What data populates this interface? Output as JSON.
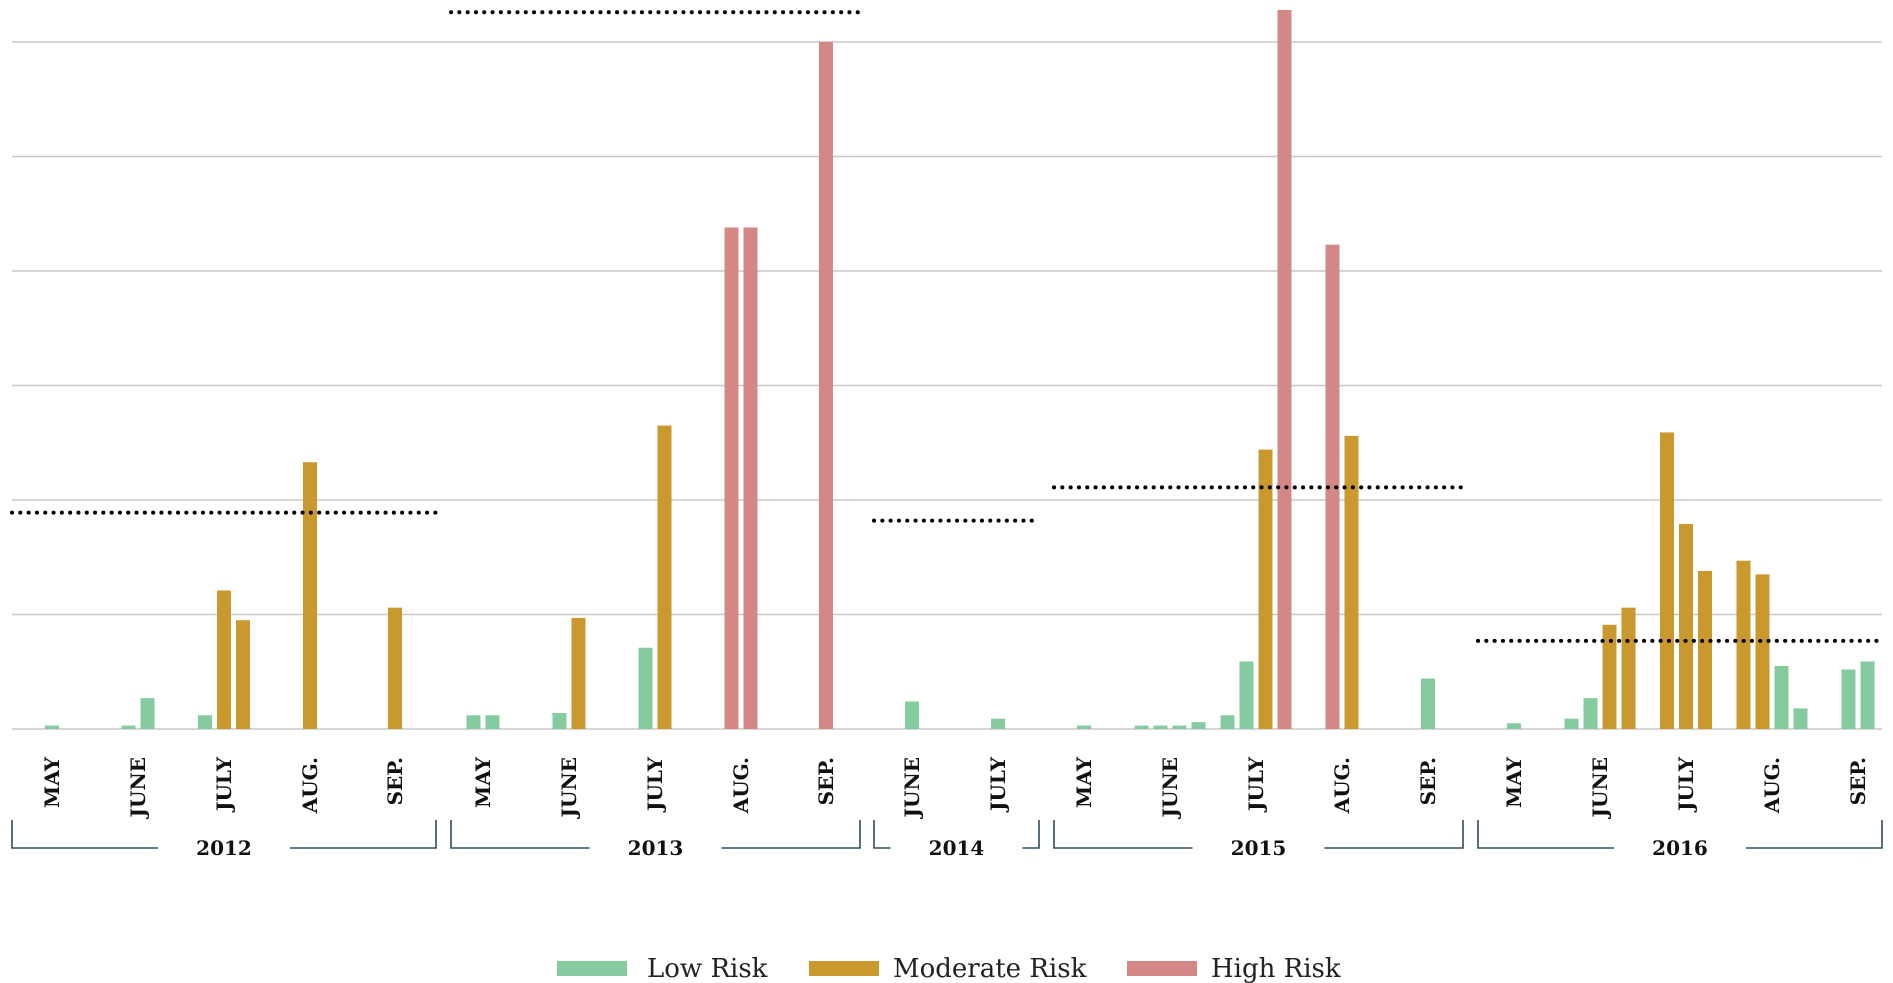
{
  "chart_data": {
    "type": "bar",
    "title": "",
    "xlabel": "",
    "ylabel": "",
    "ylim": [
      0,
      6.3
    ],
    "gridlines": [
      1,
      2,
      3,
      4,
      5,
      6
    ],
    "y_tick_labels_shown": false,
    "legend_placement": "bottom-center",
    "series": [
      {
        "name": "Low Risk",
        "color": "#86cba0"
      },
      {
        "name": "Moderate Risk",
        "color": "#c9992d"
      },
      {
        "name": "High Risk",
        "color": "#d48886"
      }
    ],
    "years": [
      {
        "label": "2012",
        "months": [
          {
            "label": "MAY",
            "bars": [
              {
                "s": 0,
                "v": 0.03
              }
            ]
          },
          {
            "label": "JUNE",
            "bars": [
              {
                "s": 0,
                "v": 0.03
              },
              {
                "s": 0,
                "v": 0.27
              }
            ]
          },
          {
            "label": "JULY",
            "bars": [
              {
                "s": 0,
                "v": 0.12
              },
              {
                "s": 1,
                "v": 1.21
              },
              {
                "s": 1,
                "v": 0.95
              }
            ]
          },
          {
            "label": "AUG.",
            "bars": [
              {
                "s": 1,
                "v": 2.33
              }
            ]
          },
          {
            "label": "SEP.",
            "bars": [
              {
                "s": 1,
                "v": 1.06
              }
            ]
          }
        ],
        "dotted_line": 1.89
      },
      {
        "label": "2013",
        "months": [
          {
            "label": "MAY",
            "bars": [
              {
                "s": 0,
                "v": 0.12
              },
              {
                "s": 0,
                "v": 0.12
              }
            ]
          },
          {
            "label": "JUNE",
            "bars": [
              {
                "s": 0,
                "v": 0.14
              },
              {
                "s": 1,
                "v": 0.97
              }
            ]
          },
          {
            "label": "JULY",
            "bars": [
              {
                "s": 0,
                "v": 0.71
              },
              {
                "s": 1,
                "v": 2.65
              }
            ]
          },
          {
            "label": "AUG.",
            "bars": [
              {
                "s": 2,
                "v": 4.38
              },
              {
                "s": 2,
                "v": 4.38
              }
            ]
          },
          {
            "label": "SEP.",
            "bars": [
              {
                "s": 2,
                "v": 6.0
              }
            ]
          }
        ],
        "dotted_line": 6.26
      },
      {
        "label": "2014",
        "months": [
          {
            "label": "JUNE",
            "bars": [
              {
                "s": 0,
                "v": 0.24
              }
            ]
          },
          {
            "label": "JULY",
            "bars": [
              {
                "s": 0,
                "v": 0.09
              }
            ]
          }
        ],
        "dotted_line": 1.82
      },
      {
        "label": "2015",
        "months": [
          {
            "label": "MAY",
            "bars": [
              {
                "s": 0,
                "v": 0.03
              }
            ]
          },
          {
            "label": "JUNE",
            "bars": [
              {
                "s": 0,
                "v": 0.03
              },
              {
                "s": 0,
                "v": 0.03
              },
              {
                "s": 0,
                "v": 0.03
              },
              {
                "s": 0,
                "v": 0.06
              }
            ]
          },
          {
            "label": "JULY",
            "bars": [
              {
                "s": 0,
                "v": 0.12
              },
              {
                "s": 0,
                "v": 0.59
              },
              {
                "s": 1,
                "v": 2.44
              },
              {
                "s": 2,
                "v": 6.28
              }
            ]
          },
          {
            "label": "AUG.",
            "bars": [
              {
                "s": 2,
                "v": 4.23
              },
              {
                "s": 1,
                "v": 2.56
              }
            ]
          },
          {
            "label": "SEP.",
            "bars": [
              {
                "s": 0,
                "v": 0.44
              }
            ]
          }
        ],
        "dotted_line": 2.11
      },
      {
        "label": "2016",
        "months": [
          {
            "label": "MAY",
            "bars": [
              {
                "s": 0,
                "v": 0.05
              }
            ]
          },
          {
            "label": "JUNE",
            "bars": [
              {
                "s": 0,
                "v": 0.09
              },
              {
                "s": 0,
                "v": 0.27
              },
              {
                "s": 1,
                "v": 0.91
              },
              {
                "s": 1,
                "v": 1.06
              }
            ]
          },
          {
            "label": "JULY",
            "bars": [
              {
                "s": 1,
                "v": 2.59
              },
              {
                "s": 1,
                "v": 1.79
              },
              {
                "s": 1,
                "v": 1.38
              }
            ]
          },
          {
            "label": "AUG.",
            "bars": [
              {
                "s": 1,
                "v": 1.47
              },
              {
                "s": 1,
                "v": 1.35
              },
              {
                "s": 0,
                "v": 0.55
              },
              {
                "s": 0,
                "v": 0.18
              }
            ]
          },
          {
            "label": "SEP.",
            "bars": [
              {
                "s": 0,
                "v": 0.52
              },
              {
                "s": 0,
                "v": 0.59
              }
            ]
          }
        ],
        "dotted_line": 0.77
      }
    ]
  }
}
